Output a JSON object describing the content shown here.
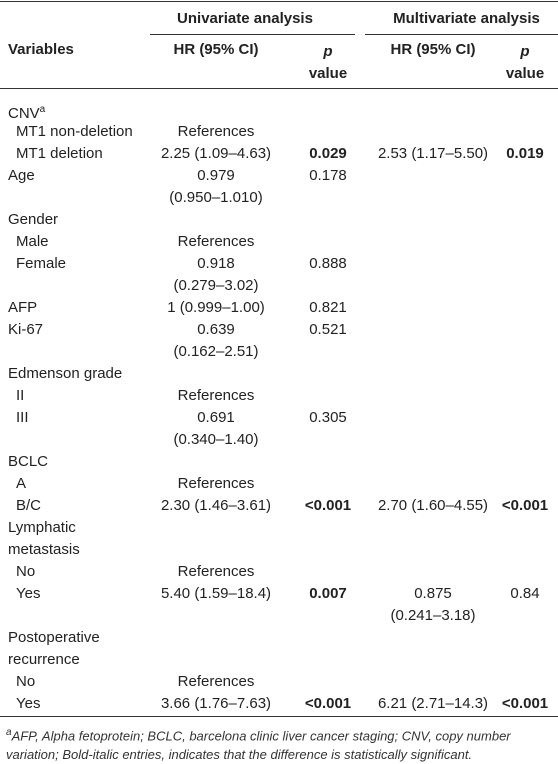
{
  "header": {
    "variables": "Variables",
    "univariate": "Univariate analysis",
    "multivariate": "Multivariate analysis",
    "uni_hr": "HR (95% CI)",
    "uni_p": [
      "p",
      "value"
    ],
    "multi_hr": "HR (95% CI)",
    "multi_p": [
      "p",
      "value"
    ]
  },
  "table": {
    "rows": [
      {
        "variable": "CNV",
        "sup": "a"
      },
      {
        "variable": "MT1 non-deletion",
        "indent": true,
        "uni_hr": "References"
      },
      {
        "variable": "MT1 deletion",
        "indent": true,
        "uni_hr": "2.25 (1.09–4.63)",
        "uni_p": "0.029",
        "uni_p_bold": true,
        "multi_hr": "2.53 (1.17–5.50)",
        "multi_p": "0.019",
        "multi_p_bold": true
      },
      {
        "variable": "Age",
        "uni_hr": [
          "0.979",
          "(0.950–1.010)"
        ],
        "uni_p": "0.178"
      },
      {
        "variable": "Gender"
      },
      {
        "variable": "Male",
        "indent": true,
        "uni_hr": "References"
      },
      {
        "variable": "Female",
        "indent": true,
        "uni_hr": [
          "0.918",
          "(0.279–3.02)"
        ],
        "uni_p": "0.888"
      },
      {
        "variable": "AFP",
        "uni_hr": "1 (0.999–1.00)",
        "uni_p": "0.821"
      },
      {
        "variable": "Ki-67",
        "uni_hr": [
          "0.639",
          "(0.162–2.51)"
        ],
        "uni_p": "0.521"
      },
      {
        "variable": "Edmenson grade"
      },
      {
        "variable": "II",
        "indent": true,
        "uni_hr": "References"
      },
      {
        "variable": "III",
        "indent": true,
        "uni_hr": [
          "0.691",
          "(0.340–1.40)"
        ],
        "uni_p": "0.305"
      },
      {
        "variable": "BCLC"
      },
      {
        "variable": "A",
        "indent": true,
        "uni_hr": "References"
      },
      {
        "variable": "B/C",
        "indent": true,
        "uni_hr": "2.30 (1.46–3.61)",
        "uni_p": "<0.001",
        "uni_p_bold": true,
        "multi_hr": "2.70 (1.60–4.55)",
        "multi_p": "<0.001",
        "multi_p_bold": true
      },
      {
        "variable": [
          "Lymphatic",
          "metastasis"
        ]
      },
      {
        "variable": "No",
        "indent": true,
        "uni_hr": "References"
      },
      {
        "variable": "Yes",
        "indent": true,
        "uni_hr": "5.40 (1.59–18.4)",
        "uni_p": "0.007",
        "uni_p_bold": true,
        "multi_hr": [
          "0.875",
          "(0.241–3.18)"
        ],
        "multi_p": "0.84"
      },
      {
        "variable": [
          "Postoperative",
          "recurrence"
        ]
      },
      {
        "variable": "No",
        "indent": true,
        "uni_hr": "References"
      },
      {
        "variable": "Yes",
        "indent": true,
        "uni_hr": "3.66 (1.76–7.63)",
        "uni_p": "<0.001",
        "uni_p_bold": true,
        "multi_hr": "6.21 (2.71–14.3)",
        "multi_p": "<0.001",
        "multi_p_bold": true
      }
    ]
  },
  "footnote": {
    "marker": "a",
    "text": "AFP, Alpha fetoprotein; BCLC, barcelona clinic liver cancer staging; CNV, copy number variation; Bold-italic entries, indicates that the difference is statistically significant."
  }
}
